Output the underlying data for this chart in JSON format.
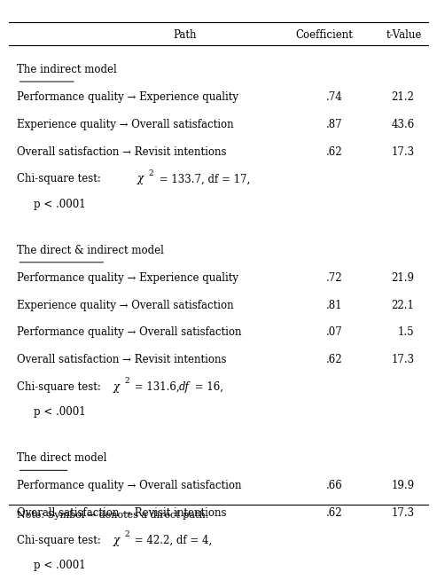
{
  "header": [
    "Path",
    "Coefficient",
    "t-Value"
  ],
  "sections": [
    {
      "title": "The indirect model",
      "rows": [
        {
          "path": "Performance quality → Experience quality",
          "coef": ".74",
          "tval": "21.2"
        },
        {
          "path": "Experience quality → Overall satisfaction",
          "coef": ".87",
          "tval": "43.6"
        },
        {
          "path": "Overall satisfaction → Revisit intentions",
          "coef": ".62",
          "tval": "17.3"
        }
      ],
      "chi_line1": "Chi-square test:    χ² = 133.7, df = 17,",
      "chi_line2": "   p < .0001"
    },
    {
      "title": "The direct & indirect model",
      "rows": [
        {
          "path": "Performance quality → Experience quality",
          "coef": ".72",
          "tval": "21.9"
        },
        {
          "path": "Experience quality → Overall satisfaction",
          "coef": ".81",
          "tval": "22.1"
        },
        {
          "path": "Performance quality → Overall satisfaction",
          "coef": ".07",
          "tval": "1.5"
        },
        {
          "path": "Overall satisfaction → Revisit intentions",
          "coef": ".62",
          "tval": "17.3"
        }
      ],
      "chi_line1": "Chi-square test:χ² = 131.6, δf = 16,",
      "chi_line2": "   p < .0001"
    },
    {
      "title": "The direct model",
      "rows": [
        {
          "path": "Performance quality → Overall satisfaction",
          "coef": ".66",
          "tval": "19.9"
        },
        {
          "path": "Overall satisfaction → Revisit intentions",
          "coef": ".62",
          "tval": "17.3"
        }
      ],
      "chi_line1": "Chi-square test:χ² = 42.2, df = 4,",
      "chi_line2": "   p < .0001"
    }
  ],
  "note": "Note: Symbol → denotes a direct path.",
  "bg_color": "#ffffff",
  "text_color": "#000000",
  "header_color": "#000000"
}
